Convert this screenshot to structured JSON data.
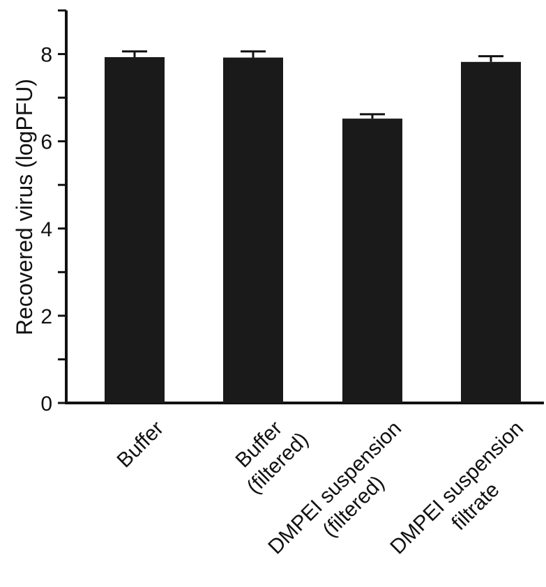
{
  "chart_data": {
    "type": "bar",
    "title": "",
    "xlabel": "",
    "ylabel": "Recovered virus (logPFU)",
    "ylim": [
      0,
      9
    ],
    "yticks": [
      0,
      2,
      4,
      6,
      8
    ],
    "categories": [
      [
        "Buffer"
      ],
      [
        "Buffer",
        "(filtered)"
      ],
      [
        "DMPEI suspension",
        "(filtered)"
      ],
      [
        "DMPEI suspension",
        "filtrate"
      ]
    ],
    "values": [
      7.93,
      7.92,
      6.52,
      7.82
    ],
    "errors": [
      0.13,
      0.14,
      0.1,
      0.13
    ],
    "bar_color": "#1a1a1a",
    "grid": false,
    "legend": "none"
  }
}
